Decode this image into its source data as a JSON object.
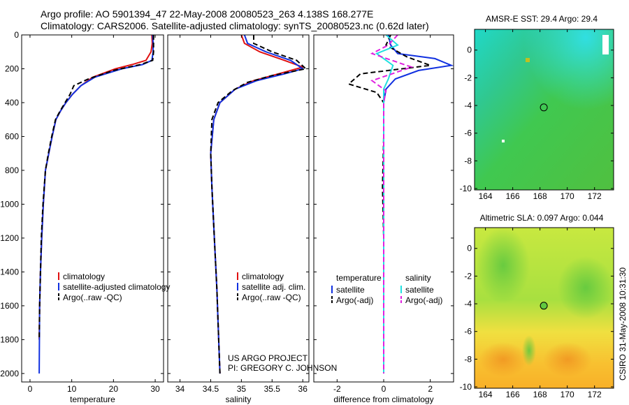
{
  "header": {
    "line1": "Argo profile: AO 5901394_47 22-May-2008 20080523_263 4.138S 168.277E",
    "line2": "Climatology: CARS2006. Satellite-adjusted climatology: synTS_20080523.nc (0.62d later)"
  },
  "credits": {
    "project": "US ARGO PROJECT",
    "pi": "PI: GREGORY C. JOHNSON",
    "timestamp": "CSIRO 31-May-2008 10:31:30"
  },
  "colors": {
    "climatology": "#e01010",
    "satellite": "#1030e0",
    "argo": "#000000",
    "satellite_diff": "#20e0e0",
    "argo_adj_diff": "#e020e0"
  },
  "chart_data": [
    {
      "id": "temperature",
      "type": "line",
      "xlabel": "temperature",
      "xlim": [
        -2,
        32
      ],
      "ylim": [
        2050,
        0
      ],
      "xticks": [
        0,
        10,
        20,
        30
      ],
      "yticks": [
        0,
        200,
        400,
        600,
        800,
        1000,
        1200,
        1400,
        1600,
        1800,
        2000
      ],
      "legend": [
        "climatology",
        "satellite-adjusted climatology",
        "Argo(..raw -QC)"
      ],
      "series": [
        {
          "name": "climatology",
          "style": "solid",
          "color": "#e01010",
          "x": [
            29.2,
            29.3,
            29.0,
            27.8,
            24.5,
            20.5,
            15.0,
            12.2,
            10.2,
            8.6,
            7.3,
            6.2,
            5.3,
            4.5,
            3.7,
            3.2,
            2.8,
            2.5,
            2.3,
            2.2
          ],
          "y": [
            0,
            50,
            100,
            150,
            175,
            200,
            250,
            300,
            350,
            400,
            450,
            500,
            600,
            700,
            800,
            1000,
            1200,
            1400,
            1600,
            1800
          ]
        },
        {
          "name": "satellite-adjusted climatology",
          "style": "solid",
          "color": "#1030e0",
          "x": [
            29.4,
            29.5,
            29.5,
            29.2,
            27.0,
            22.0,
            15.5,
            12.2,
            10.2,
            8.6,
            7.3,
            6.2,
            5.3,
            4.5,
            3.7,
            3.2,
            2.8,
            2.5,
            2.3,
            2.2
          ],
          "y": [
            0,
            50,
            100,
            150,
            175,
            200,
            250,
            300,
            350,
            400,
            450,
            500,
            600,
            700,
            800,
            1000,
            1200,
            1400,
            1600,
            2000
          ]
        },
        {
          "name": "Argo(..raw -QC)",
          "style": "dashed",
          "color": "#000000",
          "x": [
            29.6,
            29.6,
            29.6,
            29.4,
            26.5,
            20.0,
            14.0,
            10.5,
            9.6,
            8.4,
            7.2,
            6.1,
            5.2,
            4.4,
            3.7,
            3.1,
            2.7,
            2.5,
            2.3,
            2.2
          ],
          "y": [
            0,
            50,
            100,
            150,
            175,
            210,
            260,
            300,
            350,
            400,
            450,
            500,
            600,
            700,
            800,
            1000,
            1200,
            1400,
            1600,
            1800
          ]
        }
      ]
    },
    {
      "id": "salinity",
      "type": "line",
      "xlabel": "salinity",
      "xlim": [
        33.8,
        36.1
      ],
      "ylim": [
        2050,
        0
      ],
      "xticks": [
        34,
        34.5,
        35,
        35.5,
        36
      ],
      "yticks": [
        0,
        200,
        400,
        600,
        800,
        1000,
        1200,
        1400,
        1600,
        1800,
        2000
      ],
      "legend": [
        "climatology",
        "satellite adj. clim.",
        "Argo(..raw -QC)"
      ],
      "series": [
        {
          "name": "climatology",
          "style": "solid",
          "color": "#e01010",
          "x": [
            35.0,
            35.05,
            35.3,
            35.7,
            36.0,
            35.6,
            35.2,
            34.9,
            34.65,
            34.55,
            34.5,
            34.52,
            34.56,
            34.6,
            34.63,
            34.65
          ],
          "y": [
            0,
            50,
            100,
            150,
            190,
            230,
            270,
            320,
            400,
            500,
            700,
            900,
            1200,
            1500,
            1800,
            2000
          ]
        },
        {
          "name": "satellite adj. clim.",
          "style": "solid",
          "color": "#1030e0",
          "x": [
            35.05,
            35.1,
            35.4,
            35.8,
            36.0,
            35.7,
            35.25,
            34.9,
            34.65,
            34.55,
            34.5,
            34.52,
            34.56,
            34.6,
            34.63,
            34.65
          ],
          "y": [
            0,
            50,
            100,
            150,
            200,
            230,
            270,
            320,
            400,
            500,
            700,
            900,
            1200,
            1500,
            1800,
            2000
          ]
        },
        {
          "name": "Argo(..raw -QC)",
          "style": "dashed",
          "color": "#000000",
          "x": [
            35.2,
            35.2,
            35.5,
            35.9,
            36.05,
            35.5,
            35.1,
            34.85,
            34.62,
            34.52,
            34.5,
            34.52,
            34.56,
            34.6,
            34.63,
            34.65
          ],
          "y": [
            0,
            50,
            100,
            150,
            200,
            240,
            280,
            330,
            400,
            500,
            700,
            900,
            1200,
            1500,
            1800,
            2000
          ]
        }
      ]
    },
    {
      "id": "difference",
      "type": "line",
      "xlabel": "difference from climatology",
      "xlim": [
        -3,
        3
      ],
      "ylim": [
        2050,
        0
      ],
      "xticks": [
        -2,
        0,
        2
      ],
      "yticks": [
        0,
        200,
        400,
        600,
        800,
        1000,
        1200,
        1400,
        1600,
        1800,
        2000
      ],
      "legend_left_title": "temperature",
      "legend_right_title": "salinity",
      "legend": [
        "satellite",
        "Argo(-adj)",
        "satellite",
        "Argo(-adj)"
      ],
      "series": [
        {
          "name": "temperature satellite",
          "style": "solid",
          "color": "#1030e0",
          "x": [
            0.2,
            0.3,
            0.6,
            2.2,
            2.9,
            1.5,
            0.5,
            0.1,
            0.0,
            0.0,
            0.0,
            0.0,
            0.0
          ],
          "y": [
            0,
            60,
            110,
            140,
            180,
            210,
            260,
            320,
            400,
            600,
            1000,
            1500,
            2000
          ]
        },
        {
          "name": "temperature Argo(-adj)",
          "style": "dashed",
          "color": "#000000",
          "x": [
            0.3,
            0.1,
            1.0,
            2.0,
            -1.0,
            -1.5,
            -0.3,
            0.0,
            0.0,
            -0.05,
            0.0,
            0.0,
            0.0
          ],
          "y": [
            0,
            60,
            130,
            180,
            230,
            290,
            340,
            400,
            600,
            900,
            1200,
            1600,
            2000
          ]
        },
        {
          "name": "salinity satellite",
          "style": "solid",
          "color": "#20e0e0",
          "x": [
            0.1,
            0.6,
            -0.3,
            0.4,
            0.2,
            0.0,
            0.0,
            0.0,
            0.0,
            0.0,
            0.0
          ],
          "y": [
            0,
            60,
            110,
            180,
            260,
            320,
            400,
            600,
            1000,
            1500,
            2000
          ]
        },
        {
          "name": "salinity Argo(-adj)",
          "style": "dashed",
          "color": "#e020e0",
          "x": [
            0.6,
            0.2,
            -0.5,
            1.2,
            -0.5,
            0.1,
            0.0,
            0.0,
            0.0,
            0.0
          ],
          "y": [
            0,
            60,
            110,
            190,
            270,
            330,
            400,
            600,
            1000,
            2000
          ]
        }
      ]
    },
    {
      "id": "sst_map",
      "type": "heatmap",
      "title": "AMSR-E SST: 29.4 Argo: 29.4",
      "xlim": [
        163.2,
        173.4
      ],
      "ylim": [
        -10.1,
        1.5
      ],
      "xticks": [
        164,
        166,
        168,
        170,
        172
      ],
      "yticks": [
        0,
        -2,
        -4,
        -6,
        -8,
        -10
      ],
      "marker": {
        "lon": 168.277,
        "lat": -4.138
      }
    },
    {
      "id": "sla_map",
      "type": "heatmap",
      "title": "Altimetric SLA: 0.097 Argo: 0.044",
      "xlim": [
        163.2,
        173.4
      ],
      "ylim": [
        -10.1,
        1.5
      ],
      "xticks": [
        164,
        166,
        168,
        170,
        172
      ],
      "yticks": [
        0,
        -2,
        -4,
        -6,
        -8,
        -10
      ],
      "marker": {
        "lon": 168.277,
        "lat": -4.138
      }
    }
  ]
}
